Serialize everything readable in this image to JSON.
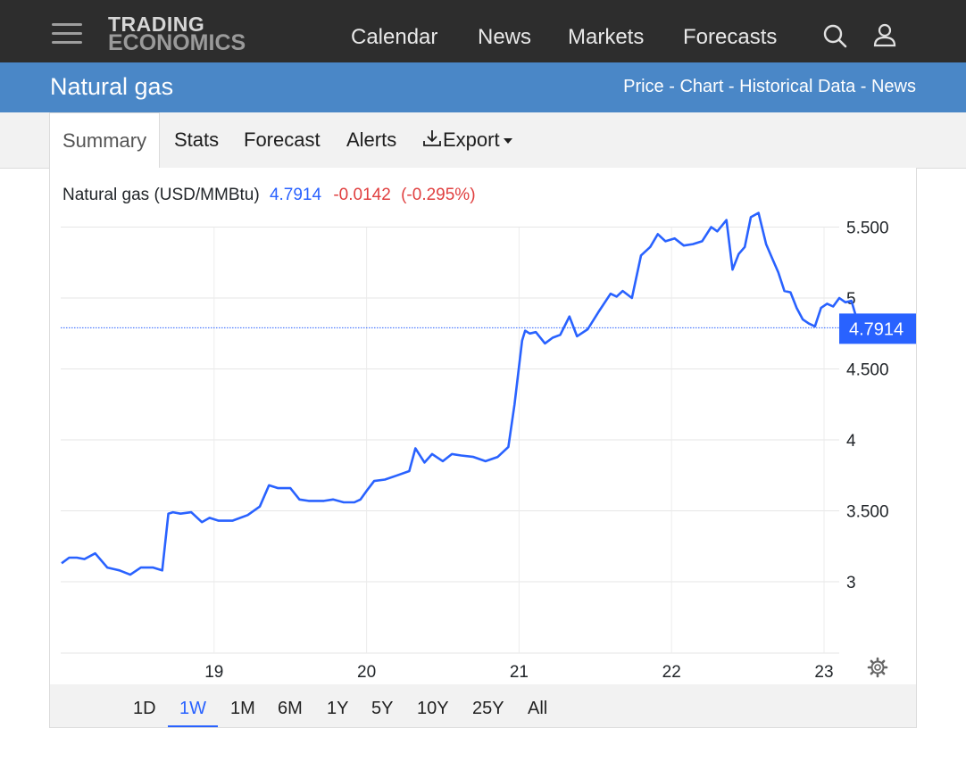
{
  "header": {
    "logo_line1": "TRADING",
    "logo_line2": "ECONOMICS",
    "nav": [
      "Calendar",
      "News",
      "Markets",
      "Forecasts"
    ],
    "icons": [
      "search-icon",
      "user-icon",
      "menu-icon"
    ]
  },
  "page": {
    "title": "Natural gas",
    "links": [
      "Price",
      "Chart",
      "Historical Data",
      "News"
    ],
    "link_separator": " - "
  },
  "tabs": {
    "items": [
      "Summary",
      "Stats",
      "Forecast",
      "Alerts",
      "Export"
    ],
    "active": "Summary"
  },
  "quote": {
    "name": "Natural gas (USD/MMBtu)",
    "price": "4.7914",
    "change": "-0.0142",
    "change_pct": "(-0.295%)",
    "price_color": "#2962ff",
    "change_color": "#e04040"
  },
  "ranges": {
    "items": [
      "1D",
      "1W",
      "1M",
      "6M",
      "1Y",
      "5Y",
      "10Y",
      "25Y",
      "All"
    ],
    "active": "1W"
  },
  "chart_data": {
    "type": "line",
    "series": [
      {
        "name": "Natural gas (USD/MMBtu)",
        "color": "#2962ff",
        "points": [
          [
            18.0,
            3.13
          ],
          [
            18.05,
            3.17
          ],
          [
            18.1,
            3.17
          ],
          [
            18.15,
            3.16
          ],
          [
            18.22,
            3.2
          ],
          [
            18.3,
            3.1
          ],
          [
            18.38,
            3.08
          ],
          [
            18.45,
            3.05
          ],
          [
            18.52,
            3.1
          ],
          [
            18.6,
            3.1
          ],
          [
            18.66,
            3.08
          ],
          [
            18.7,
            3.48
          ],
          [
            18.73,
            3.49
          ],
          [
            18.78,
            3.48
          ],
          [
            18.85,
            3.49
          ],
          [
            18.92,
            3.42
          ],
          [
            18.97,
            3.45
          ],
          [
            19.03,
            3.43
          ],
          [
            19.12,
            3.43
          ],
          [
            19.22,
            3.47
          ],
          [
            19.3,
            3.53
          ],
          [
            19.36,
            3.68
          ],
          [
            19.42,
            3.66
          ],
          [
            19.5,
            3.66
          ],
          [
            19.56,
            3.58
          ],
          [
            19.62,
            3.57
          ],
          [
            19.72,
            3.57
          ],
          [
            19.78,
            3.58
          ],
          [
            19.85,
            3.56
          ],
          [
            19.92,
            3.56
          ],
          [
            19.96,
            3.58
          ],
          [
            20.0,
            3.64
          ],
          [
            20.05,
            3.71
          ],
          [
            20.12,
            3.72
          ],
          [
            20.2,
            3.75
          ],
          [
            20.28,
            3.78
          ],
          [
            20.32,
            3.94
          ],
          [
            20.38,
            3.84
          ],
          [
            20.43,
            3.9
          ],
          [
            20.5,
            3.85
          ],
          [
            20.56,
            3.9
          ],
          [
            20.62,
            3.89
          ],
          [
            20.7,
            3.88
          ],
          [
            20.78,
            3.85
          ],
          [
            20.86,
            3.88
          ],
          [
            20.93,
            3.95
          ],
          [
            20.97,
            4.25
          ],
          [
            21.02,
            4.7
          ],
          [
            21.04,
            4.77
          ],
          [
            21.07,
            4.75
          ],
          [
            21.11,
            4.76
          ],
          [
            21.17,
            4.68
          ],
          [
            21.22,
            4.72
          ],
          [
            21.27,
            4.74
          ],
          [
            21.33,
            4.87
          ],
          [
            21.38,
            4.73
          ],
          [
            21.45,
            4.78
          ],
          [
            21.52,
            4.9
          ],
          [
            21.6,
            5.03
          ],
          [
            21.64,
            5.01
          ],
          [
            21.68,
            5.05
          ],
          [
            21.74,
            5.0
          ],
          [
            21.8,
            5.3
          ],
          [
            21.86,
            5.36
          ],
          [
            21.91,
            5.45
          ],
          [
            21.96,
            5.4
          ],
          [
            22.02,
            5.42
          ],
          [
            22.08,
            5.37
          ],
          [
            22.14,
            5.38
          ],
          [
            22.2,
            5.4
          ],
          [
            22.26,
            5.5
          ],
          [
            22.3,
            5.47
          ],
          [
            22.36,
            5.55
          ],
          [
            22.4,
            5.2
          ],
          [
            22.44,
            5.31
          ],
          [
            22.48,
            5.36
          ],
          [
            22.52,
            5.57
          ],
          [
            22.57,
            5.6
          ],
          [
            22.62,
            5.38
          ],
          [
            22.66,
            5.28
          ],
          [
            22.7,
            5.18
          ],
          [
            22.74,
            5.05
          ],
          [
            22.78,
            5.04
          ],
          [
            22.82,
            4.93
          ],
          [
            22.86,
            4.85
          ],
          [
            22.9,
            4.82
          ],
          [
            22.94,
            4.8
          ],
          [
            22.98,
            4.93
          ],
          [
            23.02,
            4.96
          ],
          [
            23.06,
            4.94
          ],
          [
            23.1,
            5.0
          ],
          [
            23.14,
            4.97
          ],
          [
            23.18,
            4.98
          ],
          [
            23.22,
            4.83
          ],
          [
            23.26,
            4.79
          ]
        ]
      }
    ],
    "x_ticks": [
      "19",
      "20",
      "21",
      "22",
      "23"
    ],
    "y_ticks": [
      "3",
      "3.500",
      "4",
      "4.500",
      "5",
      "5.500"
    ],
    "last_value_label": "4.7914",
    "xlim": [
      18.0,
      23.26
    ],
    "ylim": [
      2.5,
      5.5
    ],
    "grid": true
  }
}
